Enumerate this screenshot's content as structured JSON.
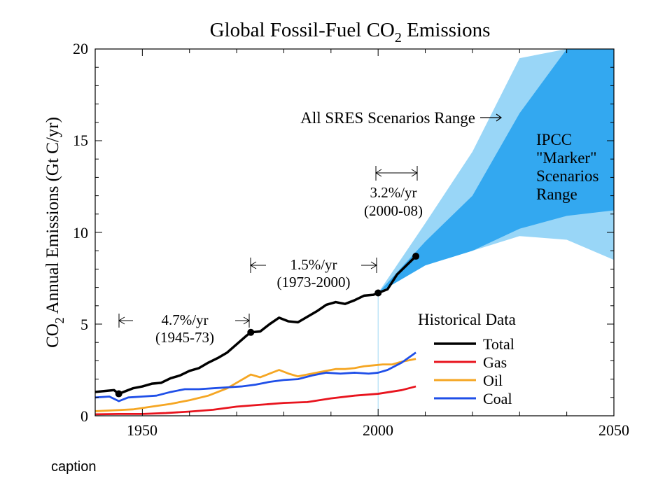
{
  "chart_data": {
    "type": "line",
    "title_main": "Global Fossil-Fuel CO",
    "title_sub": "2",
    "title_end": " Emissions",
    "ylabel_main": "CO",
    "ylabel_sub": "2",
    "ylabel_end": " Annual Emissions (Gt C/yr)",
    "xlim": [
      1940,
      2050
    ],
    "ylim": [
      0,
      20
    ],
    "x_ticks": [
      1950,
      2000,
      2050
    ],
    "x_tick_labels": [
      "1950",
      "2000",
      "2050"
    ],
    "y_ticks": [
      0,
      5,
      10,
      15,
      20
    ],
    "y_tick_labels": [
      "0",
      "5",
      "10",
      "15",
      "20"
    ],
    "legend_title": "Historical Data",
    "series": [
      {
        "name": "Total",
        "color": "#000000",
        "x": [
          1940,
          1942,
          1944,
          1945,
          1946,
          1948,
          1950,
          1952,
          1954,
          1956,
          1958,
          1960,
          1962,
          1964,
          1966,
          1968,
          1970,
          1972,
          1973,
          1975,
          1977,
          1979,
          1981,
          1983,
          1985,
          1987,
          1989,
          1991,
          1993,
          1995,
          1997,
          1999,
          2000,
          2002,
          2004,
          2006,
          2008
        ],
        "y": [
          1.3,
          1.35,
          1.4,
          1.2,
          1.3,
          1.5,
          1.6,
          1.75,
          1.8,
          2.05,
          2.2,
          2.45,
          2.6,
          2.9,
          3.15,
          3.45,
          3.9,
          4.35,
          4.55,
          4.6,
          5.0,
          5.35,
          5.15,
          5.1,
          5.4,
          5.7,
          6.05,
          6.2,
          6.1,
          6.3,
          6.55,
          6.6,
          6.7,
          6.9,
          7.7,
          8.2,
          8.7
        ]
      },
      {
        "name": "Gas",
        "color": "#e8141e",
        "x": [
          1940,
          1945,
          1950,
          1955,
          1960,
          1965,
          1970,
          1975,
          1980,
          1985,
          1990,
          1995,
          2000,
          2005,
          2008
        ],
        "y": [
          0.08,
          0.1,
          0.1,
          0.15,
          0.23,
          0.33,
          0.5,
          0.6,
          0.7,
          0.75,
          0.95,
          1.1,
          1.2,
          1.4,
          1.6
        ]
      },
      {
        "name": "Oil",
        "color": "#f5a623",
        "x": [
          1940,
          1944,
          1948,
          1952,
          1956,
          1960,
          1964,
          1968,
          1970,
          1972,
          1973,
          1975,
          1977,
          1979,
          1981,
          1983,
          1985,
          1987,
          1989,
          1991,
          1993,
          1995,
          1997,
          1999,
          2001,
          2003,
          2005,
          2008
        ],
        "y": [
          0.25,
          0.3,
          0.35,
          0.5,
          0.65,
          0.85,
          1.1,
          1.5,
          1.8,
          2.1,
          2.25,
          2.1,
          2.3,
          2.5,
          2.3,
          2.15,
          2.25,
          2.35,
          2.45,
          2.55,
          2.55,
          2.6,
          2.7,
          2.75,
          2.8,
          2.8,
          2.95,
          3.1
        ]
      },
      {
        "name": "Coal",
        "color": "#1f4fe8",
        "x": [
          1940,
          1943,
          1945,
          1947,
          1950,
          1953,
          1956,
          1959,
          1962,
          1965,
          1968,
          1971,
          1974,
          1977,
          1980,
          1983,
          1986,
          1989,
          1992,
          1995,
          1998,
          2000,
          2002,
          2005,
          2008
        ],
        "y": [
          1.0,
          1.05,
          0.8,
          1.0,
          1.05,
          1.1,
          1.3,
          1.45,
          1.45,
          1.5,
          1.55,
          1.6,
          1.7,
          1.85,
          1.95,
          2.0,
          2.2,
          2.35,
          2.3,
          2.35,
          2.3,
          2.35,
          2.5,
          2.9,
          3.45
        ]
      }
    ],
    "sres_range": {
      "x": [
        2000,
        2010,
        2020,
        2030,
        2040,
        2050
      ],
      "upper": [
        6.7,
        10.5,
        14.4,
        19.5,
        20,
        20
      ],
      "lower": [
        6.7,
        8.2,
        9.0,
        9.8,
        9.6,
        8.5
      ]
    },
    "ipcc_marker_range": {
      "x": [
        2000,
        2010,
        2020,
        2030,
        2040,
        2050
      ],
      "upper": [
        6.7,
        9.5,
        12.0,
        16.5,
        20,
        20
      ],
      "lower": [
        6.7,
        8.2,
        9.0,
        10.2,
        10.9,
        11.2
      ]
    },
    "growth_markers": [
      {
        "x": 1945,
        "y": 1.2
      },
      {
        "x": 1973,
        "y": 4.55
      },
      {
        "x": 2000,
        "y": 6.7
      },
      {
        "x": 2008,
        "y": 8.7
      }
    ],
    "annotations": {
      "rate1": "4.7%/yr",
      "period1": "(1945-73)",
      "rate2": "1.5%/yr",
      "period2": "(1973-2000)",
      "rate3": "3.2%/yr",
      "period3": "(2000-08)",
      "sres": "All SRES Scenarios Range",
      "ipcc_line1": "IPCC",
      "ipcc_line2": "\"Marker\"",
      "ipcc_line3": "Scenarios",
      "ipcc_line4": "Range"
    },
    "colors": {
      "sres_fill": "#99d6f7",
      "ipcc_fill": "#33a8f0"
    }
  },
  "caption": "caption"
}
